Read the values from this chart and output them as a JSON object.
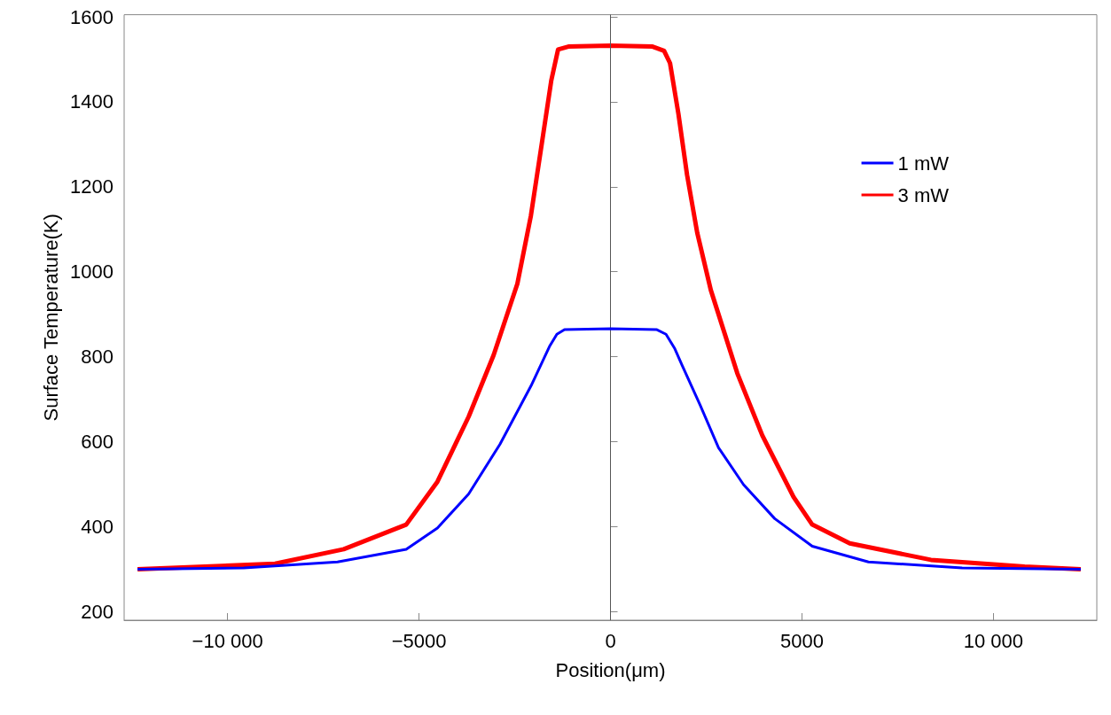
{
  "chart_data": {
    "type": "line",
    "xlabel": "Position(μm)",
    "ylabel": "Surface Temperature(K)",
    "xlim": [
      -12700,
      12700
    ],
    "ylim": [
      180,
      1605
    ],
    "xticks": [
      {
        "value": -10000,
        "label": "−10 000"
      },
      {
        "value": -5000,
        "label": "−5000"
      },
      0,
      5000,
      {
        "value": 10000,
        "label": "10 000"
      }
    ],
    "yticks": [
      200,
      400,
      600,
      800,
      1000,
      1200,
      1400,
      1600
    ],
    "grid": false,
    "legend": "top right",
    "marker": "none",
    "line_style": "solid",
    "ref_lines": [
      {
        "axis": "x",
        "value": 0,
        "color": "#555555"
      }
    ],
    "series": [
      {
        "name": "1 mW",
        "color": "#0000ff",
        "x": [
          -12350,
          -9576,
          -7129,
          -5334,
          -4519,
          -3703,
          -2887,
          -2072,
          -1582,
          -1400,
          -1200,
          0,
          1200,
          1450,
          1680,
          1866,
          2333,
          2822,
          3475,
          4290,
          5269,
          6737,
          9184,
          12280
        ],
        "values": [
          300,
          303,
          317,
          347,
          397,
          477,
          594,
          732,
          826,
          853,
          864,
          866,
          864,
          853,
          819,
          781,
          688,
          586,
          499,
          419,
          354,
          317,
          303,
          300
        ]
      },
      {
        "name": "3 mW",
        "color": "#ff0000",
        "x": [
          -12350,
          -8760,
          -6966,
          -5334,
          -4519,
          -3703,
          -3051,
          -2431,
          -2078,
          -1811,
          -1544,
          -1369,
          -1100,
          0,
          1100,
          1400,
          1555,
          1774,
          2000,
          2265,
          2620,
          3312,
          3964,
          4780,
          5269,
          6248,
          8369,
          10815,
          12280
        ],
        "values": [
          300,
          313,
          347,
          405,
          506,
          659,
          804,
          972,
          1132,
          1291,
          1451,
          1523,
          1530,
          1532,
          1530,
          1520,
          1491,
          1372,
          1228,
          1092,
          957,
          761,
          615,
          470,
          405,
          361,
          322,
          306,
          300
        ]
      }
    ]
  }
}
